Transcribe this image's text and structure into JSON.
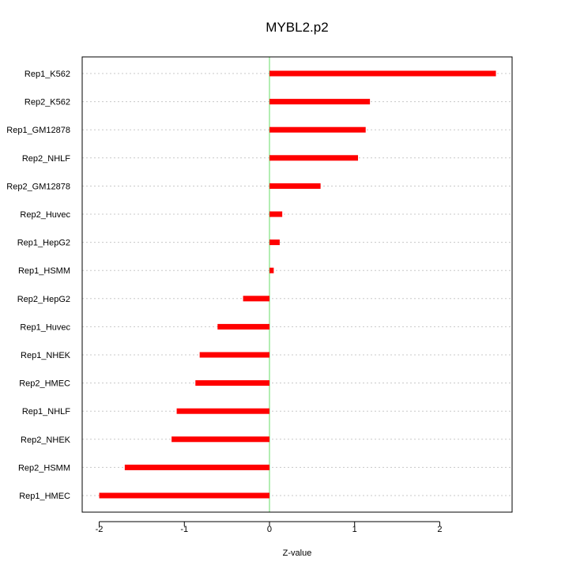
{
  "chart_data": {
    "type": "bar",
    "orientation": "horizontal",
    "title": "MYBL2.p2",
    "xlabel": "Z-value",
    "ylabel": "",
    "xlim": [
      -2.2,
      2.85
    ],
    "xticks": [
      -2,
      -1,
      0,
      1,
      2
    ],
    "xtick_labels": [
      "-2",
      "-1",
      "0",
      "1",
      "2"
    ],
    "grid": "horizontal dotted",
    "reference_line": {
      "x": 0,
      "color": "#66dd66"
    },
    "bar_color": "#ff0000",
    "categories": [
      "Rep1_K562",
      "Rep2_K562",
      "Rep1_GM12878",
      "Rep2_NHLF",
      "Rep2_GM12878",
      "Rep2_Huvec",
      "Rep1_HepG2",
      "Rep1_HSMM",
      "Rep2_HepG2",
      "Rep1_Huvec",
      "Rep1_NHEK",
      "Rep2_HMEC",
      "Rep1_NHLF",
      "Rep2_NHEK",
      "Rep2_HSMM",
      "Rep1_HMEC"
    ],
    "values": [
      2.66,
      1.18,
      1.13,
      1.04,
      0.6,
      0.15,
      0.12,
      0.05,
      -0.31,
      -0.61,
      -0.82,
      -0.87,
      -1.09,
      -1.15,
      -1.7,
      -2.0
    ]
  }
}
